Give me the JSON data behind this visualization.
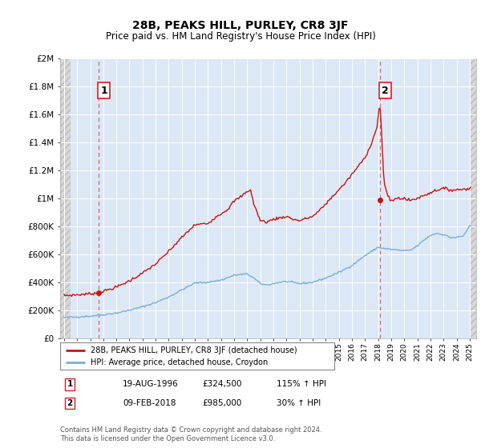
{
  "title": "28B, PEAKS HILL, PURLEY, CR8 3JF",
  "subtitle": "Price paid vs. HM Land Registry's House Price Index (HPI)",
  "ylabel_ticks": [
    "£0",
    "£200K",
    "£400K",
    "£600K",
    "£800K",
    "£1M",
    "£1.2M",
    "£1.4M",
    "£1.6M",
    "£1.8M",
    "£2M"
  ],
  "ytick_vals": [
    0,
    200000,
    400000,
    600000,
    800000,
    1000000,
    1200000,
    1400000,
    1600000,
    1800000,
    2000000
  ],
  "ylim": [
    0,
    2000000
  ],
  "xlim_start": 1993.7,
  "xlim_end": 2025.5,
  "hatch_boundary": 1994.5,
  "background_color": "#ffffff",
  "plot_bg_color": "#dce8f5",
  "hatch_bg_color": "#e0e0e0",
  "grid_color": "#ffffff",
  "hpi_line_color": "#7bafd4",
  "price_line_color": "#cc1111",
  "dashed_vline_color": "#dd4444",
  "transaction1_x": 1996.63,
  "transaction1_y": 324500,
  "transaction2_x": 2018.12,
  "transaction2_y": 985000,
  "legend_entry1": "28B, PEAKS HILL, PURLEY, CR8 3JF (detached house)",
  "legend_entry2": "HPI: Average price, detached house, Croydon",
  "footnote": "Contains HM Land Registry data © Crown copyright and database right 2024.\nThis data is licensed under the Open Government Licence v3.0.",
  "t1_date_str": "19-AUG-1996",
  "t1_price_str": "£324,500",
  "t1_hpi_str": "115% ↑ HPI",
  "t2_date_str": "09-FEB-2018",
  "t2_price_str": "£985,000",
  "t2_hpi_str": "30% ↑ HPI"
}
